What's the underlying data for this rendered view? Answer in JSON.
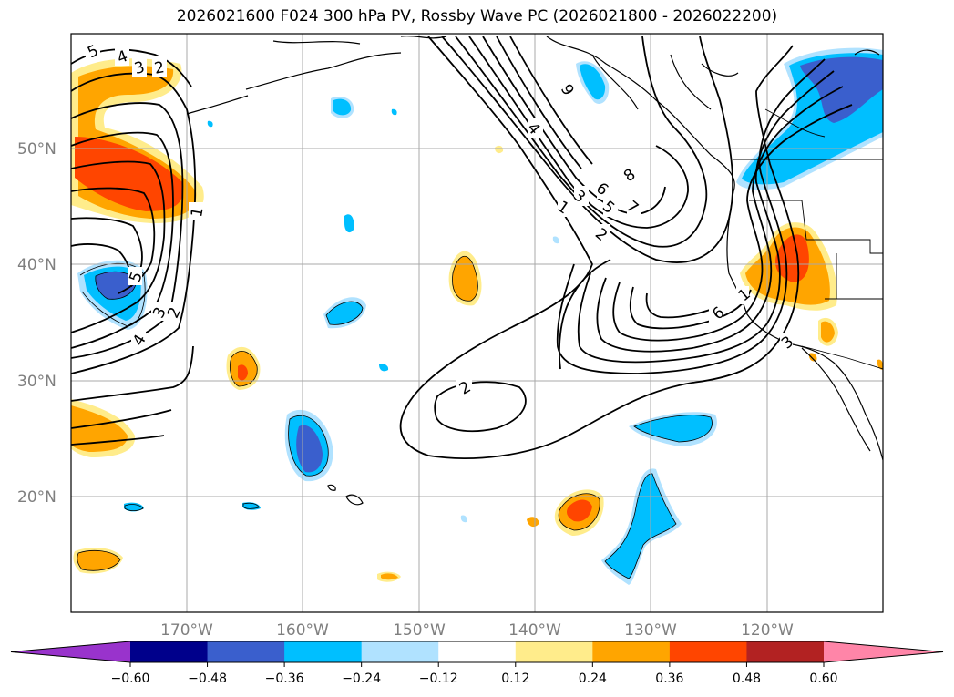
{
  "title": "2026021600 F024 300 hPa PV, Rossby Wave PC (2026021800 - 2026022200)",
  "lat_labels": [
    "50°N",
    "40°N",
    "30°N",
    "20°N"
  ],
  "lon_labels": [
    "170°W",
    "160°W",
    "150°W",
    "140°W",
    "130°W",
    "120°W"
  ],
  "contour_labels": [
    "5",
    "4",
    "3",
    "2",
    "1",
    "2",
    "3",
    "4",
    "5",
    "9",
    "4",
    "8",
    "6",
    "5",
    "7",
    "1",
    "3",
    "2",
    "2",
    "6",
    "1",
    "3"
  ],
  "colorbar": {
    "ticks": [
      "−0.60",
      "−0.48",
      "−0.36",
      "−0.24",
      "−0.12",
      "0.12",
      "0.24",
      "0.36",
      "0.48",
      "0.60"
    ],
    "colors": [
      "#9933cc",
      "#00008b",
      "#3a5fcd",
      "#00bfff",
      "#b0e2ff",
      "#ffffff",
      "#ffec8b",
      "#ffa500",
      "#ff4500",
      "#b22222",
      "#ff85a8"
    ]
  },
  "palette": {
    "positive_light": "#ffec8b",
    "positive_mid": "#ffa500",
    "positive_strong": "#ff4500",
    "negative_light": "#b0e2ff",
    "negative_mid": "#00bfff",
    "negative_strong": "#3a5fcd"
  }
}
